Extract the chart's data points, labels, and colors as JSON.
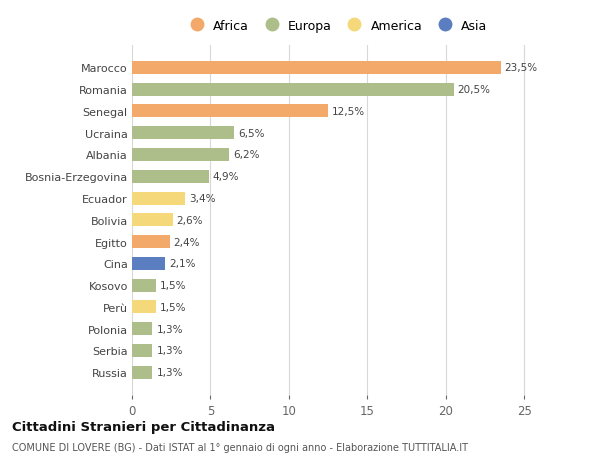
{
  "countries": [
    "Marocco",
    "Romania",
    "Senegal",
    "Ucraina",
    "Albania",
    "Bosnia-Erzegovina",
    "Ecuador",
    "Bolivia",
    "Egitto",
    "Cina",
    "Kosovo",
    "Perù",
    "Polonia",
    "Serbia",
    "Russia"
  ],
  "values": [
    23.5,
    20.5,
    12.5,
    6.5,
    6.2,
    4.9,
    3.4,
    2.6,
    2.4,
    2.1,
    1.5,
    1.5,
    1.3,
    1.3,
    1.3
  ],
  "labels": [
    "23,5%",
    "20,5%",
    "12,5%",
    "6,5%",
    "6,2%",
    "4,9%",
    "3,4%",
    "2,6%",
    "2,4%",
    "2,1%",
    "1,5%",
    "1,5%",
    "1,3%",
    "1,3%",
    "1,3%"
  ],
  "continents": [
    "Africa",
    "Europa",
    "Africa",
    "Europa",
    "Europa",
    "Europa",
    "America",
    "America",
    "Africa",
    "Asia",
    "Europa",
    "America",
    "Europa",
    "Europa",
    "Europa"
  ],
  "colors": {
    "Africa": "#F2A96A",
    "Europa": "#AEBE8A",
    "America": "#F5D87A",
    "Asia": "#5B7EC0"
  },
  "legend_order": [
    "Africa",
    "Europa",
    "America",
    "Asia"
  ],
  "legend_colors": [
    "#F2A96A",
    "#AEBE8A",
    "#F5D87A",
    "#5B7EC0"
  ],
  "title": "Cittadini Stranieri per Cittadinanza",
  "subtitle": "COMUNE DI LOVERE (BG) - Dati ISTAT al 1° gennaio di ogni anno - Elaborazione TUTTITALIA.IT",
  "xlim": [
    0,
    26
  ],
  "xticks": [
    0,
    5,
    10,
    15,
    20,
    25
  ],
  "bg_color": "#ffffff",
  "grid_color": "#d8d8d8"
}
